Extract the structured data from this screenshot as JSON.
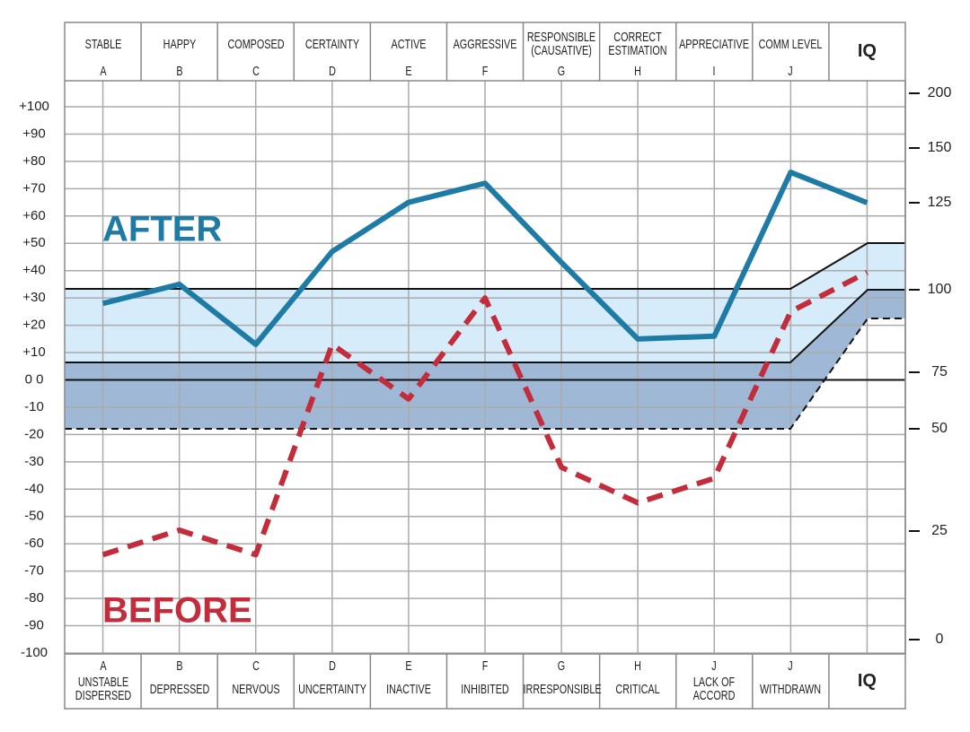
{
  "chart_data": {
    "type": "line",
    "categories": [
      "STABLE",
      "HAPPY",
      "COMPOSED",
      "CERTAINTY",
      "ACTIVE",
      "AGGRESSIVE",
      "RESPONSIBLE (CAUSATIVE)",
      "CORRECT ESTIMATION",
      "APPRECIATIVE",
      "COMM LEVEL"
    ],
    "top_letters": [
      "A",
      "B",
      "C",
      "D",
      "E",
      "F",
      "G",
      "H",
      "I",
      "J"
    ],
    "bottom_letters": [
      "A",
      "B",
      "C",
      "D",
      "E",
      "F",
      "G",
      "H",
      "J",
      "J"
    ],
    "bottom_labels": [
      "UNSTABLE DISPERSED",
      "DEPRESSED",
      "NERVOUS",
      "UNCERTAINTY",
      "INACTIVE",
      "INHIBITED",
      "IRRESPONSIBLE",
      "CRITICAL",
      "LACK OF ACCORD",
      "WITHDRAWN"
    ],
    "y2_category": "IQ",
    "y2_bottom_label": "IQ",
    "series": [
      {
        "name": "AFTER",
        "color": "#1d7ba6",
        "dashed": false,
        "values": [
          28,
          35,
          13,
          47,
          65,
          72,
          43,
          15,
          16,
          76
        ],
        "iq": 125
      },
      {
        "name": "BEFORE",
        "color": "#c22c3b",
        "dashed": true,
        "values": [
          -64,
          -55,
          -64,
          13,
          -7,
          30,
          -32,
          -45,
          -36,
          25
        ],
        "iq": 105
      }
    ],
    "ylim": [
      -100,
      100
    ],
    "yticks": [
      {
        "value": 100,
        "label": "+100"
      },
      {
        "value": 90,
        "label": "+90"
      },
      {
        "value": 80,
        "label": "+80"
      },
      {
        "value": 70,
        "label": "+70"
      },
      {
        "value": 60,
        "label": "+60"
      },
      {
        "value": 50,
        "label": "+50"
      },
      {
        "value": 40,
        "label": "+40"
      },
      {
        "value": 30,
        "label": "+30"
      },
      {
        "value": 20,
        "label": "+20"
      },
      {
        "value": 10,
        "label": "+10"
      },
      {
        "value": 0,
        "label": "0 0"
      },
      -10,
      -20,
      -30,
      -40,
      -50,
      -60,
      -70,
      -80,
      -90,
      -100
    ],
    "y2ticks": [
      0,
      25,
      50,
      75,
      100,
      125,
      150,
      200
    ],
    "grid": true
  }
}
